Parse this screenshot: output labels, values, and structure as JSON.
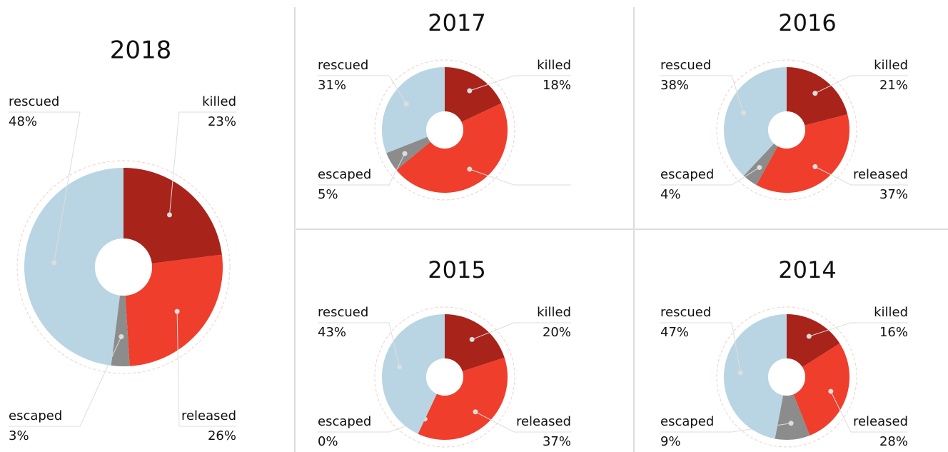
{
  "chart_data": [
    {
      "type": "pie",
      "title": "2018",
      "categories": [
        "killed",
        "released",
        "escaped",
        "rescued"
      ],
      "values": [
        23,
        26,
        3,
        48
      ],
      "value_labels": [
        "23%",
        "26%",
        "3%",
        "48%"
      ],
      "colors": [
        "#a8231a",
        "#ef3e2b",
        "#8c8c8c",
        "#b9d5e3"
      ]
    },
    {
      "type": "pie",
      "title": "2017",
      "categories": [
        "killed",
        null,
        "escaped",
        "rescued"
      ],
      "values": [
        18,
        46,
        5,
        31
      ],
      "value_labels": [
        "18%",
        null,
        "5%",
        "31%"
      ],
      "colors": [
        "#a8231a",
        "#ef3e2b",
        "#8c8c8c",
        "#b9d5e3"
      ]
    },
    {
      "type": "pie",
      "title": "2016",
      "categories": [
        "killed",
        "released",
        "escaped",
        "rescued"
      ],
      "values": [
        21,
        37,
        4,
        38
      ],
      "value_labels": [
        "21%",
        "37%",
        "4%",
        "38%"
      ],
      "colors": [
        "#a8231a",
        "#ef3e2b",
        "#8c8c8c",
        "#b9d5e3"
      ]
    },
    {
      "type": "pie",
      "title": "2015",
      "categories": [
        "killed",
        "released",
        "escaped",
        "rescued"
      ],
      "values": [
        20,
        37,
        0,
        43
      ],
      "value_labels": [
        "20%",
        "37%",
        "0%",
        "43%"
      ],
      "colors": [
        "#a8231a",
        "#ef3e2b",
        "#8c8c8c",
        "#b9d5e3"
      ]
    },
    {
      "type": "pie",
      "title": "2014",
      "categories": [
        "killed",
        "released",
        "escaped",
        "rescued"
      ],
      "values": [
        16,
        28,
        9,
        47
      ],
      "value_labels": [
        "16%",
        "28%",
        "9%",
        "47%"
      ],
      "colors": [
        "#a8231a",
        "#ef3e2b",
        "#8c8c8c",
        "#b9d5e3"
      ]
    }
  ]
}
